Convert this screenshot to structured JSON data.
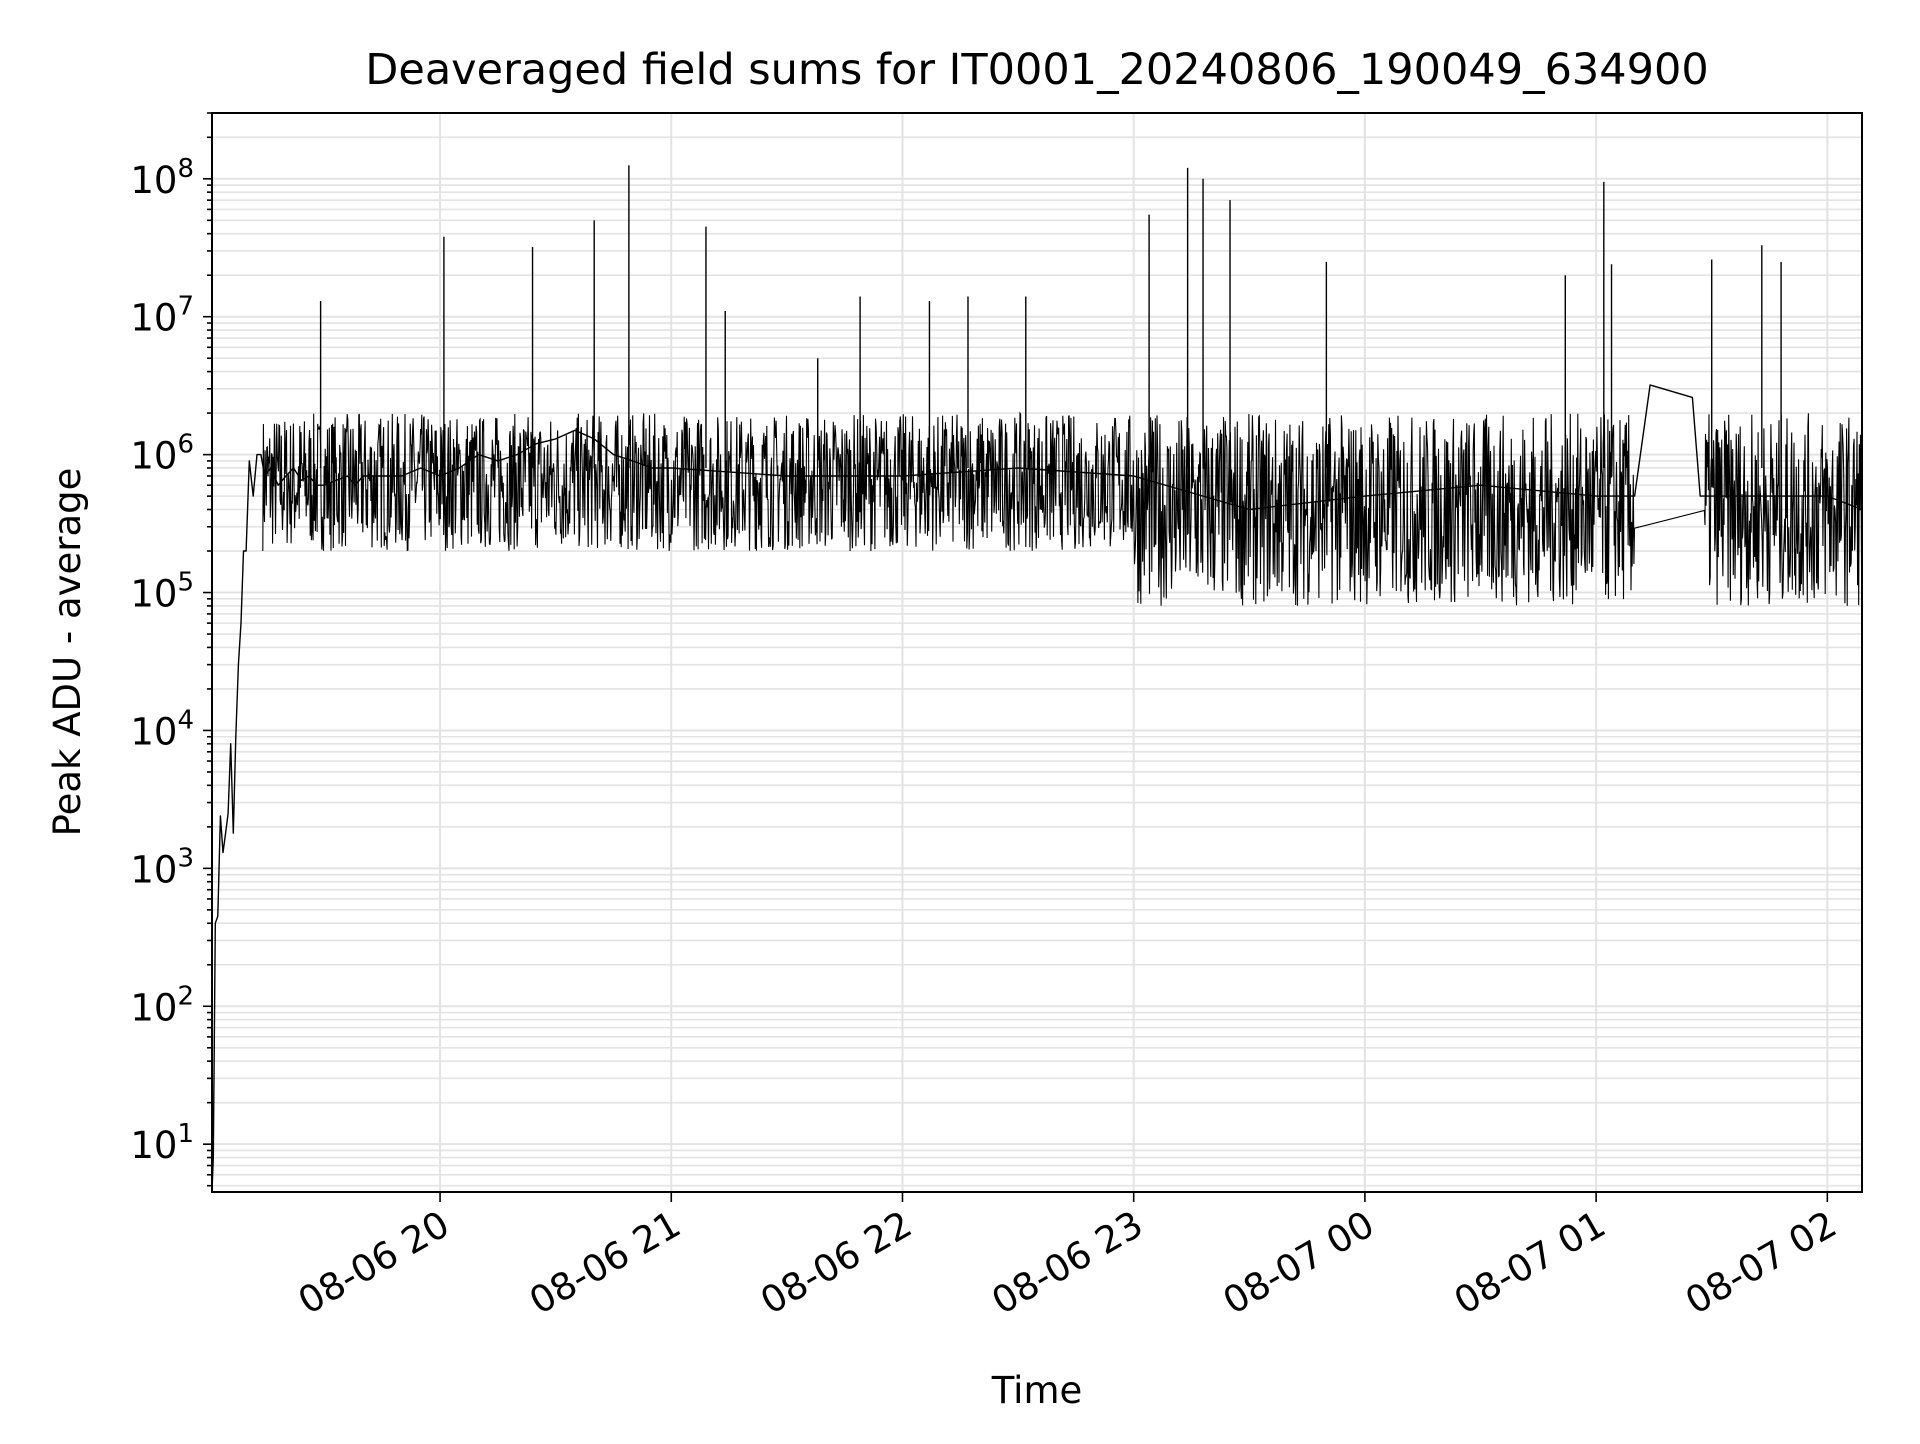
{
  "chart_data": {
    "type": "line",
    "title": "Deaveraged field sums for IT0001_20240806_190049_634900",
    "xlabel": "Time",
    "ylabel": "Peak ADU - average",
    "yscale": "log",
    "ylim": [
      4.5,
      300000000
    ],
    "xlim": [
      "2024-08-06 19:00:49",
      "2024-08-07 02:09:00"
    ],
    "grid": true,
    "x_ticks": [
      {
        "value": "2024-08-06 20:00",
        "label": "08-06 20"
      },
      {
        "value": "2024-08-06 21:00",
        "label": "08-06 21"
      },
      {
        "value": "2024-08-06 22:00",
        "label": "08-06 22"
      },
      {
        "value": "2024-08-06 23:00",
        "label": "08-06 23"
      },
      {
        "value": "2024-08-07 00:00",
        "label": "08-07 00"
      },
      {
        "value": "2024-08-07 01:00",
        "label": "08-07 01"
      },
      {
        "value": "2024-08-07 02:00",
        "label": "08-07 02"
      }
    ],
    "y_ticks": [
      {
        "value": 10,
        "base": "10",
        "exp": "1"
      },
      {
        "value": 100,
        "base": "10",
        "exp": "2"
      },
      {
        "value": 1000,
        "base": "10",
        "exp": "3"
      },
      {
        "value": 10000,
        "base": "10",
        "exp": "4"
      },
      {
        "value": 100000,
        "base": "10",
        "exp": "5"
      },
      {
        "value": 1000000,
        "base": "10",
        "exp": "6"
      },
      {
        "value": 10000000,
        "base": "10",
        "exp": "7"
      },
      {
        "value": 100000000,
        "base": "10",
        "exp": "8"
      }
    ],
    "series": [
      {
        "color": "#000000",
        "x": [
          "2024-08-06 19:00:49",
          "2024-08-06 19:01:10",
          "2024-08-06 19:01:40",
          "2024-08-06 19:02:20",
          "2024-08-06 19:03:00",
          "2024-08-06 19:03:40",
          "2024-08-06 19:04:20",
          "2024-08-06 19:05:00",
          "2024-08-06 19:05:40",
          "2024-08-06 19:06:20",
          "2024-08-06 19:07:00",
          "2024-08-06 19:07:40",
          "2024-08-06 19:08:20",
          "2024-08-06 19:09:00",
          "2024-08-06 19:09:40",
          "2024-08-06 19:10:30",
          "2024-08-06 19:11:30",
          "2024-08-06 19:12:30",
          "2024-08-06 19:13:30",
          "2024-08-06 19:14:30",
          "2024-08-06 19:16:00",
          "2024-08-06 19:18:00",
          "2024-08-06 19:20:00",
          "2024-08-06 19:22:00",
          "2024-08-06 19:24:00",
          "2024-08-06 19:26:00",
          "2024-08-06 19:28:00",
          "2024-08-06 19:30:00",
          "2024-08-06 19:33:00",
          "2024-08-06 19:36:00",
          "2024-08-06 19:38:00",
          "2024-08-06 19:40:00",
          "2024-08-06 19:45:00",
          "2024-08-06 19:50:00",
          "2024-08-06 19:55:00",
          "2024-08-06 20:00:00",
          "2024-08-06 20:05:00",
          "2024-08-06 20:10:00",
          "2024-08-06 20:15:00",
          "2024-08-06 20:20:00",
          "2024-08-06 20:25:00",
          "2024-08-06 20:30:00",
          "2024-08-06 20:35:00",
          "2024-08-06 20:40:00",
          "2024-08-06 20:45:00",
          "2024-08-06 20:50:00",
          "2024-08-06 20:55:00",
          "2024-08-06 21:00:00",
          "2024-08-06 21:30:00",
          "2024-08-06 22:00:00",
          "2024-08-06 22:30:00",
          "2024-08-06 23:00:00",
          "2024-08-06 23:30:00",
          "2024-08-07 00:00:00",
          "2024-08-07 00:30:00",
          "2024-08-07 01:00:00",
          "2024-08-07 01:10:00",
          "2024-08-07 01:14:00",
          "2024-08-07 01:25:00",
          "2024-08-07 01:27:00",
          "2024-08-07 01:40:00",
          "2024-08-07 02:00:00",
          "2024-08-07 02:09:00"
        ],
        "values": [
          4.5,
          8,
          400,
          450,
          2400,
          1300,
          1800,
          2500,
          8000,
          1800,
          9000,
          30000,
          60000,
          200000,
          200000,
          900000,
          500000,
          1000000,
          1000000,
          700000,
          800000,
          600000,
          700000,
          800000,
          650000,
          700000,
          600000,
          600000,
          650000,
          700000,
          600000,
          700000,
          700000,
          700000,
          800000,
          700000,
          800000,
          1000000,
          900000,
          1000000,
          1200000,
          1300000,
          1500000,
          1300000,
          1000000,
          900000,
          800000,
          800000,
          700000,
          700000,
          800000,
          700000,
          400000,
          500000,
          600000,
          500000,
          500000,
          3200000,
          2600000,
          500000,
          500000,
          500000,
          400000
        ]
      }
    ],
    "series_note": "",
    "spikes": {
      "x": [
        "2024-08-06 19:29:00",
        "2024-08-06 20:01:00",
        "2024-08-06 20:24:00",
        "2024-08-06 20:40:00",
        "2024-08-06 20:49:00",
        "2024-08-06 21:09:00",
        "2024-08-06 21:14:00",
        "2024-08-06 21:38:00",
        "2024-08-06 21:49:00",
        "2024-08-06 22:07:00",
        "2024-08-06 22:17:00",
        "2024-08-06 22:32:00",
        "2024-08-06 23:04:00",
        "2024-08-06 23:14:00",
        "2024-08-06 23:18:00",
        "2024-08-06 23:25:00",
        "2024-08-06 23:50:00",
        "2024-08-07 00:52:00",
        "2024-08-07 01:02:00",
        "2024-08-07 01:04:00",
        "2024-08-07 01:30:00",
        "2024-08-07 01:43:00",
        "2024-08-07 01:48:00"
      ],
      "values": [
        13000000,
        38000000,
        32000000,
        50000000,
        125000000,
        45000000,
        11000000,
        5000000,
        14000000,
        13000000,
        14000000,
        14000000,
        55000000,
        120000000,
        100000000,
        70000000,
        25000000,
        20000000,
        95000000,
        24000000,
        26000000,
        33000000,
        25000000
      ]
    }
  }
}
